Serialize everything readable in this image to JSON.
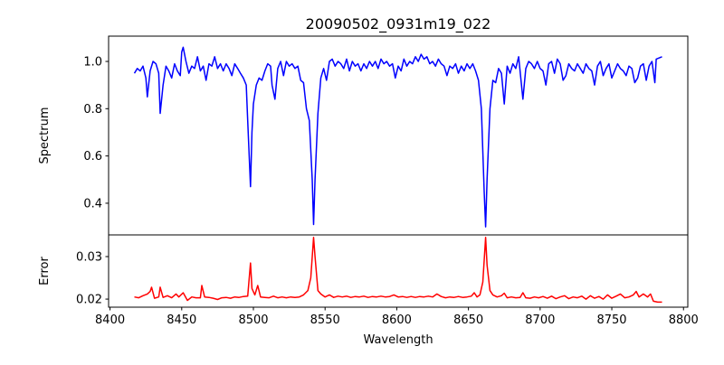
{
  "chart_data": [
    {
      "type": "line",
      "title": "20090502_0931m19_022",
      "xlabel": "",
      "ylabel": "Spectrum",
      "xlim": [
        8399,
        8803
      ],
      "ylim": [
        0.266,
        1.107
      ],
      "yticks": [
        "0.4",
        "0.6",
        "0.8",
        "1.0"
      ],
      "ytick_values": [
        0.4,
        0.6,
        0.8,
        1.0
      ],
      "grid": false,
      "series": [
        {
          "name": "Spectrum",
          "color": "#0000ff",
          "x": [
            8417,
            8419,
            8421,
            8423,
            8425,
            8426,
            8428,
            8430,
            8432,
            8434,
            8435,
            8437,
            8439,
            8441,
            8443,
            8445,
            8447,
            8449,
            8450,
            8451,
            8453,
            8455,
            8457,
            8459,
            8461,
            8463,
            8465,
            8467,
            8469,
            8471,
            8473,
            8475,
            8477,
            8479,
            8481,
            8483,
            8485,
            8487,
            8489,
            8491,
            8493,
            8495,
            8496,
            8498,
            8499,
            8500,
            8502,
            8504,
            8506,
            8508,
            8510,
            8512,
            8513,
            8515,
            8517,
            8519,
            8521,
            8523,
            8525,
            8527,
            8529,
            8531,
            8533,
            8535,
            8537,
            8539,
            8541,
            8542,
            8543,
            8545,
            8547,
            8549,
            8551,
            8553,
            8555,
            8557,
            8559,
            8561,
            8563,
            8565,
            8567,
            8569,
            8571,
            8573,
            8575,
            8577,
            8579,
            8581,
            8583,
            8585,
            8587,
            8589,
            8591,
            8593,
            8595,
            8597,
            8599,
            8601,
            8603,
            8605,
            8607,
            8609,
            8611,
            8613,
            8615,
            8617,
            8619,
            8621,
            8623,
            8625,
            8627,
            8629,
            8631,
            8633,
            8635,
            8637,
            8639,
            8641,
            8643,
            8645,
            8647,
            8649,
            8651,
            8653,
            8655,
            8657,
            8659,
            8661,
            8662,
            8663,
            8665,
            8667,
            8669,
            8671,
            8673,
            8675,
            8677,
            8679,
            8681,
            8683,
            8685,
            8688,
            8690,
            8692,
            8694,
            8696,
            8698,
            8700,
            8702,
            8704,
            8706,
            8708,
            8710,
            8712,
            8714,
            8716,
            8718,
            8720,
            8722,
            8724,
            8726,
            8728,
            8730,
            8732,
            8734,
            8736,
            8738,
            8740,
            8742,
            8744,
            8746,
            8748,
            8750,
            8752,
            8754,
            8756,
            8758,
            8760,
            8762,
            8764,
            8766,
            8768,
            8770,
            8772,
            8774,
            8776,
            8778,
            8780,
            8781,
            8785
          ],
          "y": [
            0.95,
            0.97,
            0.96,
            0.98,
            0.93,
            0.85,
            0.96,
            1.0,
            0.99,
            0.95,
            0.78,
            0.9,
            0.98,
            0.96,
            0.93,
            0.99,
            0.96,
            0.94,
            1.04,
            1.06,
            1.0,
            0.95,
            0.98,
            0.97,
            1.02,
            0.96,
            0.98,
            0.92,
            0.99,
            0.98,
            1.02,
            0.97,
            0.99,
            0.96,
            0.99,
            0.97,
            0.94,
            0.99,
            0.97,
            0.95,
            0.93,
            0.9,
            0.75,
            0.47,
            0.7,
            0.82,
            0.9,
            0.93,
            0.92,
            0.96,
            0.99,
            0.98,
            0.9,
            0.84,
            0.97,
            1.0,
            0.94,
            1.0,
            0.98,
            0.99,
            0.97,
            0.98,
            0.92,
            0.91,
            0.8,
            0.75,
            0.5,
            0.31,
            0.5,
            0.78,
            0.93,
            0.97,
            0.92,
            1.0,
            1.01,
            0.98,
            1.0,
            0.99,
            0.97,
            1.01,
            0.96,
            1.0,
            0.98,
            0.99,
            0.96,
            0.99,
            0.97,
            1.0,
            0.98,
            1.0,
            0.97,
            1.01,
            0.99,
            1.0,
            0.98,
            0.99,
            0.93,
            0.98,
            0.96,
            1.01,
            0.98,
            1.0,
            0.99,
            1.02,
            1.0,
            1.03,
            1.01,
            1.02,
            0.99,
            1.0,
            0.98,
            1.01,
            0.99,
            0.98,
            0.94,
            0.98,
            0.97,
            0.99,
            0.95,
            0.98,
            0.96,
            0.99,
            0.97,
            0.99,
            0.96,
            0.92,
            0.8,
            0.45,
            0.3,
            0.5,
            0.8,
            0.92,
            0.91,
            0.97,
            0.95,
            0.82,
            0.98,
            0.95,
            0.99,
            0.97,
            1.02,
            0.84,
            0.97,
            1.0,
            0.99,
            0.97,
            1.0,
            0.97,
            0.96,
            0.9,
            0.99,
            1.0,
            0.95,
            1.01,
            0.99,
            0.92,
            0.94,
            0.99,
            0.97,
            0.96,
            0.99,
            0.97,
            0.95,
            0.99,
            0.97,
            0.96,
            0.9,
            0.98,
            1.0,
            0.94,
            0.97,
            0.99,
            0.93,
            0.96,
            0.99,
            0.97,
            0.96,
            0.94,
            0.98,
            0.97,
            0.91,
            0.93,
            0.98,
            0.99,
            0.92,
            0.98,
            1.0,
            0.91,
            1.01,
            1.02
          ]
        }
      ]
    },
    {
      "type": "line",
      "title": "",
      "xlabel": "Wavelength",
      "ylabel": "Error",
      "xlim": [
        8399,
        8803
      ],
      "ylim": [
        0.0181,
        0.0351
      ],
      "xticks": [
        "8400",
        "8450",
        "8500",
        "8550",
        "8600",
        "8650",
        "8700",
        "8750",
        "8800"
      ],
      "xtick_values": [
        8400,
        8450,
        8500,
        8550,
        8600,
        8650,
        8700,
        8750,
        8800
      ],
      "yticks": [
        "0.02",
        "0.03"
      ],
      "ytick_values": [
        0.02,
        0.03
      ],
      "grid": false,
      "series": [
        {
          "name": "Error",
          "color": "#ff0000",
          "x": [
            8417,
            8420,
            8423,
            8426,
            8428,
            8429,
            8431,
            8434,
            8435,
            8437,
            8440,
            8443,
            8446,
            8448,
            8451,
            8454,
            8457,
            8460,
            8463,
            8464,
            8466,
            8469,
            8472,
            8475,
            8478,
            8481,
            8484,
            8487,
            8490,
            8493,
            8496,
            8498,
            8499,
            8501,
            8503,
            8505,
            8508,
            8511,
            8514,
            8517,
            8520,
            8523,
            8526,
            8529,
            8532,
            8535,
            8538,
            8540,
            8542,
            8543,
            8545,
            8547,
            8550,
            8553,
            8556,
            8559,
            8562,
            8565,
            8568,
            8571,
            8574,
            8577,
            8580,
            8583,
            8586,
            8589,
            8592,
            8595,
            8598,
            8601,
            8604,
            8607,
            8610,
            8613,
            8616,
            8619,
            8622,
            8625,
            8628,
            8631,
            8634,
            8637,
            8640,
            8643,
            8646,
            8649,
            8652,
            8654,
            8656,
            8658,
            8660,
            8662,
            8663,
            8665,
            8667,
            8670,
            8673,
            8675,
            8677,
            8680,
            8683,
            8686,
            8688,
            8690,
            8693,
            8696,
            8699,
            8702,
            8705,
            8708,
            8711,
            8714,
            8717,
            8720,
            8723,
            8726,
            8729,
            8732,
            8735,
            8738,
            8741,
            8744,
            8747,
            8750,
            8753,
            8756,
            8759,
            8762,
            8765,
            8767,
            8769,
            8772,
            8775,
            8777,
            8779,
            8782,
            8785
          ],
          "y": [
            0.0205,
            0.0203,
            0.0208,
            0.0212,
            0.0218,
            0.0228,
            0.0202,
            0.0205,
            0.0228,
            0.0204,
            0.0208,
            0.0203,
            0.0212,
            0.0205,
            0.0215,
            0.0197,
            0.0205,
            0.0203,
            0.0203,
            0.0232,
            0.0205,
            0.0204,
            0.0202,
            0.0199,
            0.0203,
            0.0204,
            0.0202,
            0.0205,
            0.0204,
            0.0206,
            0.0207,
            0.0285,
            0.0225,
            0.021,
            0.0232,
            0.0205,
            0.0204,
            0.0203,
            0.0207,
            0.0203,
            0.0205,
            0.0203,
            0.0205,
            0.0204,
            0.0205,
            0.021,
            0.022,
            0.025,
            0.0345,
            0.03,
            0.022,
            0.0212,
            0.0205,
            0.021,
            0.0204,
            0.0207,
            0.0205,
            0.0207,
            0.0204,
            0.0206,
            0.0205,
            0.0207,
            0.0204,
            0.0206,
            0.0205,
            0.0207,
            0.0205,
            0.0206,
            0.021,
            0.0205,
            0.0206,
            0.0204,
            0.0206,
            0.0204,
            0.0206,
            0.0205,
            0.0207,
            0.0205,
            0.0212,
            0.0206,
            0.0203,
            0.0205,
            0.0204,
            0.0206,
            0.0204,
            0.0205,
            0.0207,
            0.0215,
            0.0205,
            0.021,
            0.024,
            0.0345,
            0.028,
            0.022,
            0.021,
            0.0205,
            0.0208,
            0.0214,
            0.0203,
            0.0205,
            0.0203,
            0.0204,
            0.0215,
            0.0203,
            0.0202,
            0.0205,
            0.0203,
            0.0206,
            0.0202,
            0.0207,
            0.0201,
            0.0205,
            0.0208,
            0.0201,
            0.0205,
            0.0203,
            0.0207,
            0.02,
            0.0208,
            0.0202,
            0.0206,
            0.02,
            0.021,
            0.0202,
            0.0207,
            0.0212,
            0.0203,
            0.0205,
            0.021,
            0.0218,
            0.0205,
            0.0212,
            0.0205,
            0.0212,
            0.0195,
            0.0193,
            0.0193
          ]
        }
      ]
    }
  ]
}
